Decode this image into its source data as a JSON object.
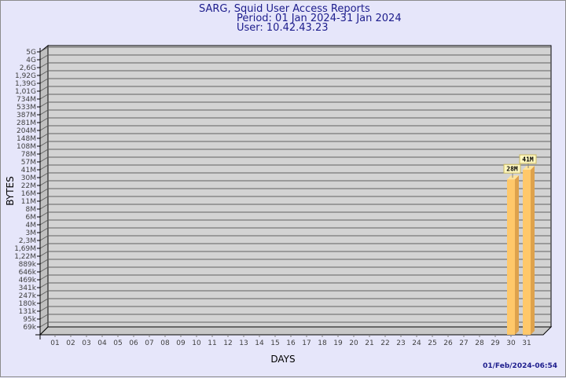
{
  "chart_data": {
    "type": "bar",
    "title": "SARG, Squid User Access Reports",
    "subtitle_period": "Period: 01 Jan 2024-31 Jan 2024",
    "subtitle_user": "User: 10.42.43.23",
    "xlabel": "DAYS",
    "ylabel": "BYTES",
    "y_scale": "log",
    "grid": true,
    "y_tick_labels": [
      "5G",
      "4G",
      "2,6G",
      "1,92G",
      "1,39G",
      "1,01G",
      "734M",
      "533M",
      "387M",
      "281M",
      "204M",
      "148M",
      "108M",
      "78M",
      "57M",
      "41M",
      "30M",
      "22M",
      "16M",
      "11M",
      "8M",
      "6M",
      "4M",
      "3M",
      "2,3M",
      "1,69M",
      "1,22M",
      "889k",
      "646k",
      "469k",
      "341k",
      "247k",
      "180k",
      "131k",
      "95k",
      "69k"
    ],
    "categories": [
      "01",
      "02",
      "03",
      "04",
      "05",
      "06",
      "07",
      "08",
      "09",
      "10",
      "11",
      "12",
      "13",
      "14",
      "15",
      "16",
      "17",
      "18",
      "19",
      "20",
      "21",
      "22",
      "23",
      "24",
      "25",
      "26",
      "27",
      "28",
      "29",
      "30",
      "31"
    ],
    "bars": [
      {
        "category": "30",
        "value_label": "28M",
        "value": 28000000
      },
      {
        "category": "31",
        "value_label": "41M",
        "value": 41000000
      }
    ],
    "colors": {
      "bar_front": "#ffc86a",
      "bar_side": "#dea24c",
      "bar_top": "#ffe39a",
      "plot_bg": "#d3d3d3",
      "text": "#1c1c8c",
      "background": "#e6e6fa"
    }
  },
  "footer": {
    "timestamp": "01/Feb/2024-06:54"
  }
}
